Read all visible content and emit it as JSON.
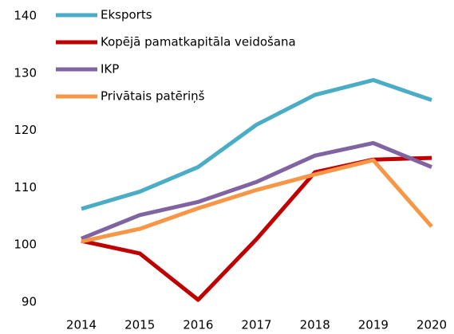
{
  "chart_data": {
    "type": "line",
    "categories": [
      "2014",
      "2015",
      "2016",
      "2017",
      "2018",
      "2019",
      "2020"
    ],
    "series": [
      {
        "name": "Eksports",
        "color": "#4bacc6",
        "values": [
          106.3,
          109.3,
          113.6,
          121.0,
          126.2,
          128.8,
          125.3
        ]
      },
      {
        "name": "Kopējā pamatkapitāla veidošana",
        "color": "#c00000",
        "values": [
          100.7,
          98.5,
          90.4,
          101.0,
          112.7,
          114.9,
          115.2
        ]
      },
      {
        "name": "IKP",
        "color": "#8064a2",
        "values": [
          101.1,
          105.2,
          107.5,
          111.0,
          115.6,
          117.8,
          113.6
        ]
      },
      {
        "name": "Privātais patēriņš",
        "color": "#f79646",
        "values": [
          100.6,
          102.8,
          106.4,
          109.6,
          112.3,
          114.8,
          103.2
        ]
      }
    ],
    "ylim": [
      90,
      140
    ],
    "yticks": [
      90,
      100,
      110,
      120,
      130,
      140
    ],
    "grid": false,
    "legend": "top-left"
  }
}
